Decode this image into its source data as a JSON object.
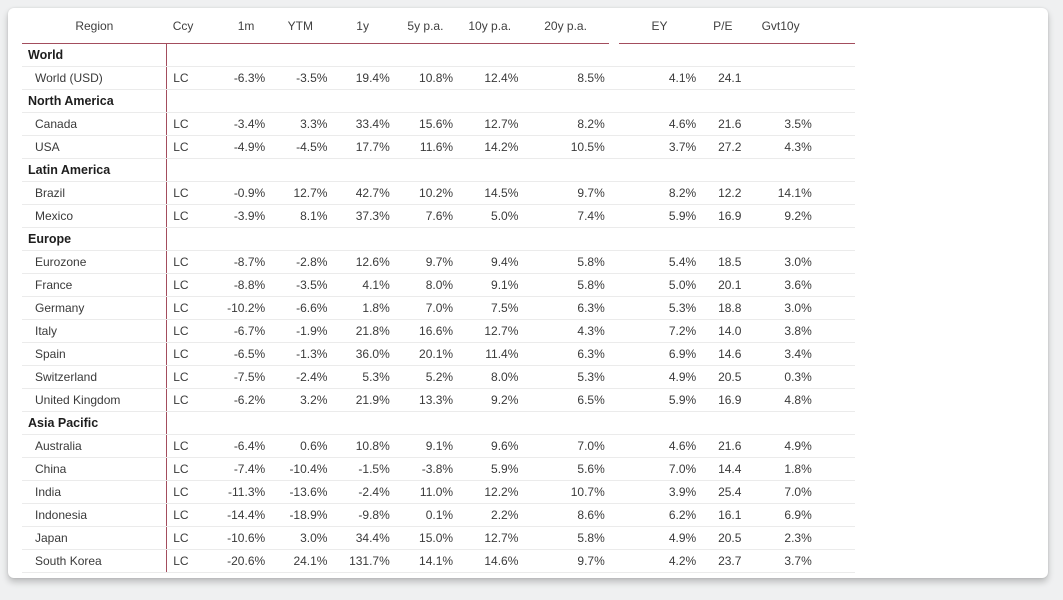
{
  "colors": {
    "accent_line": "#a34d5d",
    "row_divider": "#ebebeb",
    "card_bg": "#ffffff",
    "page_bg": "#eff0f1",
    "group_text": "#1d1d1d",
    "value_text": "#3a3a3a"
  },
  "chart_data": {
    "type": "table",
    "columns": [
      "Region",
      "Ccy",
      "1m",
      "YTM",
      "1y",
      "5y p.a.",
      "10y p.a.",
      "20y p.a.",
      "EY",
      "P/E",
      "Gvt10y"
    ],
    "sections": [
      {
        "group": "World",
        "rows": [
          {
            "region": "World (USD)",
            "ccy": "LC",
            "values": [
              "-6.3%",
              "-3.5%",
              "19.4%",
              "10.8%",
              "12.4%",
              "8.5%",
              "4.1%",
              "24.1",
              ""
            ]
          }
        ]
      },
      {
        "group": "North America",
        "rows": [
          {
            "region": "Canada",
            "ccy": "LC",
            "values": [
              "-3.4%",
              "3.3%",
              "33.4%",
              "15.6%",
              "12.7%",
              "8.2%",
              "4.6%",
              "21.6",
              "3.5%"
            ]
          },
          {
            "region": "USA",
            "ccy": "LC",
            "values": [
              "-4.9%",
              "-4.5%",
              "17.7%",
              "11.6%",
              "14.2%",
              "10.5%",
              "3.7%",
              "27.2",
              "4.3%"
            ]
          }
        ]
      },
      {
        "group": "Latin America",
        "rows": [
          {
            "region": "Brazil",
            "ccy": "LC",
            "values": [
              "-0.9%",
              "12.7%",
              "42.7%",
              "10.2%",
              "14.5%",
              "9.7%",
              "8.2%",
              "12.2",
              "14.1%"
            ]
          },
          {
            "region": "Mexico",
            "ccy": "LC",
            "values": [
              "-3.9%",
              "8.1%",
              "37.3%",
              "7.6%",
              "5.0%",
              "7.4%",
              "5.9%",
              "16.9",
              "9.2%"
            ]
          }
        ]
      },
      {
        "group": "Europe",
        "rows": [
          {
            "region": "Eurozone",
            "ccy": "LC",
            "values": [
              "-8.7%",
              "-2.8%",
              "12.6%",
              "9.7%",
              "9.4%",
              "5.8%",
              "5.4%",
              "18.5",
              "3.0%"
            ]
          },
          {
            "region": "France",
            "ccy": "LC",
            "values": [
              "-8.8%",
              "-3.5%",
              "4.1%",
              "8.0%",
              "9.1%",
              "5.8%",
              "5.0%",
              "20.1",
              "3.6%"
            ]
          },
          {
            "region": "Germany",
            "ccy": "LC",
            "values": [
              "-10.2%",
              "-6.6%",
              "1.8%",
              "7.0%",
              "7.5%",
              "6.3%",
              "5.3%",
              "18.8",
              "3.0%"
            ]
          },
          {
            "region": "Italy",
            "ccy": "LC",
            "values": [
              "-6.7%",
              "-1.9%",
              "21.8%",
              "16.6%",
              "12.7%",
              "4.3%",
              "7.2%",
              "14.0",
              "3.8%"
            ]
          },
          {
            "region": "Spain",
            "ccy": "LC",
            "values": [
              "-6.5%",
              "-1.3%",
              "36.0%",
              "20.1%",
              "11.4%",
              "6.3%",
              "6.9%",
              "14.6",
              "3.4%"
            ]
          },
          {
            "region": "Switzerland",
            "ccy": "LC",
            "values": [
              "-7.5%",
              "-2.4%",
              "5.3%",
              "5.2%",
              "8.0%",
              "5.3%",
              "4.9%",
              "20.5",
              "0.3%"
            ]
          },
          {
            "region": "United Kingdom",
            "ccy": "LC",
            "values": [
              "-6.2%",
              "3.2%",
              "21.9%",
              "13.3%",
              "9.2%",
              "6.5%",
              "5.9%",
              "16.9",
              "4.8%"
            ]
          }
        ]
      },
      {
        "group": "Asia Pacific",
        "rows": [
          {
            "region": "Australia",
            "ccy": "LC",
            "values": [
              "-6.4%",
              "0.6%",
              "10.8%",
              "9.1%",
              "9.6%",
              "7.0%",
              "4.6%",
              "21.6",
              "4.9%"
            ]
          },
          {
            "region": "China",
            "ccy": "LC",
            "values": [
              "-7.4%",
              "-10.4%",
              "-1.5%",
              "-3.8%",
              "5.9%",
              "5.6%",
              "7.0%",
              "14.4",
              "1.8%"
            ]
          },
          {
            "region": "India",
            "ccy": "LC",
            "values": [
              "-11.3%",
              "-13.6%",
              "-2.4%",
              "11.0%",
              "12.2%",
              "10.7%",
              "3.9%",
              "25.4",
              "7.0%"
            ]
          },
          {
            "region": "Indonesia",
            "ccy": "LC",
            "values": [
              "-14.4%",
              "-18.9%",
              "-9.8%",
              "0.1%",
              "2.2%",
              "8.6%",
              "6.2%",
              "16.1",
              "6.9%"
            ]
          },
          {
            "region": "Japan",
            "ccy": "LC",
            "values": [
              "-10.6%",
              "3.0%",
              "34.4%",
              "15.0%",
              "12.7%",
              "5.8%",
              "4.9%",
              "20.5",
              "2.3%"
            ]
          },
          {
            "region": "South Korea",
            "ccy": "LC",
            "values": [
              "-20.6%",
              "24.1%",
              "131.7%",
              "14.1%",
              "14.6%",
              "9.7%",
              "4.2%",
              "23.7",
              "3.7%"
            ]
          }
        ]
      }
    ]
  }
}
